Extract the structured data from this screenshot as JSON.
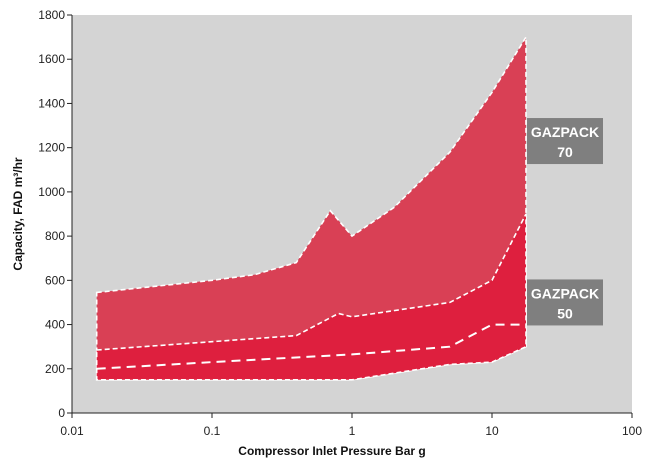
{
  "chart_data": {
    "type": "area",
    "xscale": "log",
    "xlim": [
      0.01,
      100
    ],
    "ylim": [
      0,
      1800
    ],
    "xticks": [
      0.01,
      0.1,
      1,
      10,
      100
    ],
    "xtick_labels": [
      "0.01",
      "0.1",
      "1",
      "10",
      "100"
    ],
    "yticks": [
      0,
      200,
      400,
      600,
      800,
      1000,
      1200,
      1400,
      1600,
      1800
    ],
    "ytick_labels": [
      "0",
      "200",
      "400",
      "600",
      "800",
      "1000",
      "1200",
      "1400",
      "1600",
      "1800"
    ],
    "xlabel": "Compressor Inlet Pressure Bar g",
    "ylabel": "Capacity, FAD m³/hr",
    "grid": false,
    "background": "#d4d4d4",
    "series": [
      {
        "name": "GAZPACK 70",
        "color": "#d94055",
        "upper": [
          [
            0.015,
            545
          ],
          [
            0.1,
            600
          ],
          [
            0.2,
            625
          ],
          [
            0.4,
            680
          ],
          [
            0.7,
            915
          ],
          [
            1,
            800
          ],
          [
            2,
            930
          ],
          [
            5,
            1180
          ],
          [
            10,
            1450
          ],
          [
            17.5,
            1700
          ]
        ],
        "lower": [
          [
            0.015,
            150
          ],
          [
            1,
            150
          ],
          [
            2,
            180
          ],
          [
            5,
            220
          ],
          [
            10,
            230
          ],
          [
            17.5,
            300
          ]
        ]
      },
      {
        "name": "GAZPACK 50",
        "color": "#de1f3e",
        "upper": [
          [
            0.015,
            285
          ],
          [
            0.4,
            350
          ],
          [
            0.8,
            450
          ],
          [
            1,
            435
          ],
          [
            5,
            500
          ],
          [
            10,
            600
          ],
          [
            17.5,
            900
          ]
        ],
        "lower": [
          [
            0.015,
            150
          ],
          [
            1,
            150
          ],
          [
            2,
            180
          ],
          [
            5,
            220
          ],
          [
            10,
            230
          ],
          [
            17.5,
            300
          ]
        ]
      }
    ],
    "dashed_line": [
      [
        0.015,
        200
      ],
      [
        0.1,
        230
      ],
      [
        1,
        265
      ],
      [
        5,
        300
      ],
      [
        10,
        400
      ],
      [
        17.5,
        400
      ]
    ],
    "annotations": [
      {
        "line1": "GAZPACK",
        "line2": "70",
        "value": 1230
      },
      {
        "line1": "GAZPACK",
        "line2": "50",
        "value": 500
      }
    ],
    "colors": {
      "annotation_bg": "#7f7f7f",
      "outline": "#ffffff"
    }
  }
}
